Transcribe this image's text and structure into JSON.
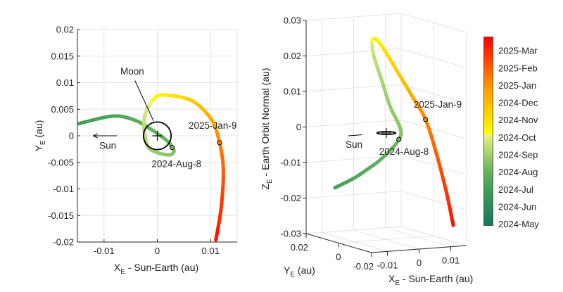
{
  "colors": {
    "colormap": [
      {
        "f": 0.0,
        "c": "#157a5c"
      },
      {
        "f": 0.18,
        "c": "#3f9a58"
      },
      {
        "f": 0.3,
        "c": "#6cb85e"
      },
      {
        "f": 0.48,
        "c": "#e8f282"
      },
      {
        "f": 0.485,
        "c": "#ffff00"
      },
      {
        "f": 0.72,
        "c": "#ffa000"
      },
      {
        "f": 1.0,
        "c": "#ff0000"
      }
    ],
    "grid": "#e3e3e3",
    "axis": "#262626"
  },
  "chart_data": [
    {
      "type": "line",
      "title": "",
      "xlabel": {
        "main": "X",
        "sub": "E",
        "rest": " - Sun-Earth (au)"
      },
      "ylabel": {
        "main": "Y",
        "sub": "E",
        "rest": " (au)"
      },
      "xlim": [
        -0.015,
        0.015
      ],
      "ylim": [
        -0.02,
        0.02
      ],
      "xticks": [
        {
          "v": -0.01,
          "label": "-0.01"
        },
        {
          "v": 0,
          "label": "0"
        },
        {
          "v": 0.01,
          "label": "0.01"
        }
      ],
      "yticks": [
        {
          "v": 0.02,
          "label": "0.02"
        },
        {
          "v": 0.015,
          "label": "0.015"
        },
        {
          "v": 0.01,
          "label": "0.01"
        },
        {
          "v": 0.005,
          "label": "0.005"
        },
        {
          "v": 0,
          "label": "0"
        },
        {
          "v": -0.005,
          "label": "-0.005"
        },
        {
          "v": -0.01,
          "label": "-0.01"
        },
        {
          "v": -0.015,
          "label": "-0.015"
        },
        {
          "v": -0.02,
          "label": "-0.02"
        }
      ],
      "grid": true,
      "annotations": {
        "moon": "Moon",
        "sun": "Sun",
        "jan": "2025-Jan-9",
        "aug": "2024-Aug-8"
      }
    },
    {
      "type": "line3d",
      "title": "",
      "xlabel": {
        "main": "X",
        "sub": "E",
        "rest": " - Sun-Earth (au)"
      },
      "ylabel": {
        "main": "Y",
        "sub": "E",
        "rest": " (au)"
      },
      "zlabel": {
        "main": "Z",
        "sub": "E",
        "rest": " - Earth Orbit Normal (au)"
      },
      "xlim": [
        -0.015,
        0.015
      ],
      "ylim": [
        -0.02,
        0.02
      ],
      "zlim": [
        -0.03,
        0.03
      ],
      "xticks": [
        {
          "v": -0.01,
          "label": "-0.01"
        },
        {
          "v": 0,
          "label": "0"
        },
        {
          "v": 0.01,
          "label": "0.01"
        }
      ],
      "yticks": [
        {
          "v": 0.02,
          "label": "0.02"
        },
        {
          "v": 0,
          "label": "0"
        },
        {
          "v": -0.02,
          "label": "-0.02"
        }
      ],
      "zticks": [
        {
          "v": 0.03,
          "label": "0.03"
        },
        {
          "v": 0.02,
          "label": "0.02"
        },
        {
          "v": 0.01,
          "label": "0.01"
        },
        {
          "v": 0,
          "label": "0"
        },
        {
          "v": -0.01,
          "label": "-0.01"
        },
        {
          "v": -0.02,
          "label": "-0.02"
        },
        {
          "v": -0.03,
          "label": "-0.03"
        }
      ],
      "grid": true,
      "annotations": {
        "sun": "Sun",
        "jan": "2025-Jan-9",
        "aug": "2024-Aug-8"
      }
    }
  ],
  "trajectory": {
    "columns": [
      "months_since_2024_May_1",
      "x_au",
      "y_au",
      "z_au"
    ],
    "points": [
      [
        2.0,
        -0.0151,
        0.0022,
        -0.0147
      ],
      [
        2.3,
        -0.0084,
        0.0037,
        -0.0127
      ],
      [
        2.55,
        -0.0044,
        0.003,
        -0.0103
      ],
      [
        2.8,
        -0.0013,
        0.0013,
        -0.0077
      ],
      [
        3.05,
        0.0018,
        -0.0009,
        -0.0039
      ],
      [
        3.25,
        0.0028,
        -0.0022,
        -0.0017
      ],
      [
        3.45,
        0.0031,
        -0.003,
        0.0
      ],
      [
        3.6,
        0.0022,
        -0.0036,
        0.0025
      ],
      [
        3.8,
        -0.0004,
        -0.003,
        0.008
      ],
      [
        4.1,
        -0.002,
        -0.0015,
        0.0145
      ],
      [
        4.6,
        -0.0024,
        0.0035,
        0.0223
      ],
      [
        5.3,
        -0.0004,
        0.0072,
        0.0256
      ],
      [
        5.8,
        0.0022,
        0.0076,
        0.0237
      ],
      [
        6.6,
        0.0067,
        0.0065,
        0.0162
      ],
      [
        7.5,
        0.0102,
        0.003,
        0.0085
      ],
      [
        8.3,
        0.0117,
        -0.0013,
        0.0032
      ],
      [
        9.0,
        0.0124,
        -0.0065,
        -0.0056
      ],
      [
        9.8,
        0.012,
        -0.0135,
        -0.0157
      ],
      [
        10.5,
        0.011,
        -0.0196,
        -0.0241
      ]
    ],
    "markers": [
      {
        "label": "2024-Aug-8",
        "x": 0.0028,
        "y": -0.0022,
        "z": -0.0017
      },
      {
        "label": "2025-Jan-9",
        "x": 0.0117,
        "y": -0.0013,
        "z": 0.0032
      }
    ],
    "moon_orbit_radius_au": 0.0026
  },
  "colorbar": {
    "range_months": [
      -0.16,
      10.8
    ],
    "ticks": [
      {
        "t": 10,
        "label": "2025-Mar"
      },
      {
        "t": 9,
        "label": "2025-Feb"
      },
      {
        "t": 8,
        "label": "2025-Jan"
      },
      {
        "t": 7,
        "label": "2024-Dec"
      },
      {
        "t": 6,
        "label": "2024-Nov"
      },
      {
        "t": 5,
        "label": "2024-Oct"
      },
      {
        "t": 4,
        "label": "2024-Sep"
      },
      {
        "t": 3,
        "label": "2024-Aug"
      },
      {
        "t": 2,
        "label": "2024-Jul"
      },
      {
        "t": 1,
        "label": "2024-Jun"
      },
      {
        "t": 0,
        "label": "2024-May"
      }
    ]
  }
}
